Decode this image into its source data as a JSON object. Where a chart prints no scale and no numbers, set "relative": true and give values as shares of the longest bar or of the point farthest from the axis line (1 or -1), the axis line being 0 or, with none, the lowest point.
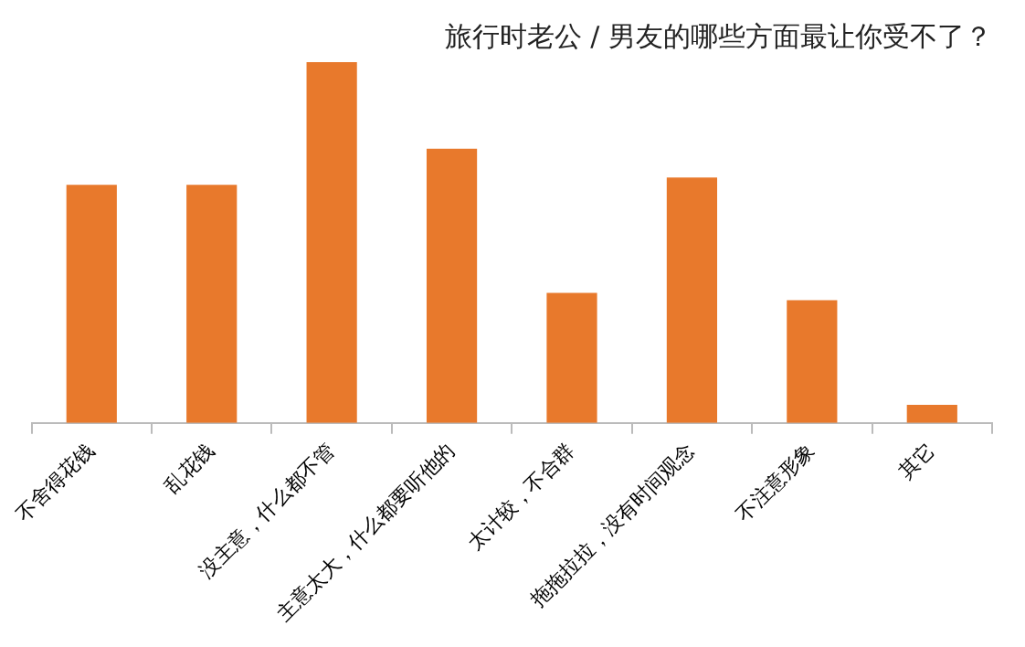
{
  "chart_data": {
    "type": "bar",
    "title": "旅行时老公 / 男友的哪些方面最让你受不了？",
    "categories": [
      "不舍得花钱",
      "乱花钱",
      "没主意，什么都不管",
      "主意太大，什么都要听他的",
      "太计较，不合群",
      "拖拖拉拉，没有时间观念",
      "不注意形象",
      "其它"
    ],
    "values": [
      0.66,
      0.66,
      1,
      0.76,
      0.36,
      0.68,
      0.34,
      0.05
    ],
    "color": "#e8792c",
    "relative": true,
    "grid": false,
    "legend": false
  }
}
